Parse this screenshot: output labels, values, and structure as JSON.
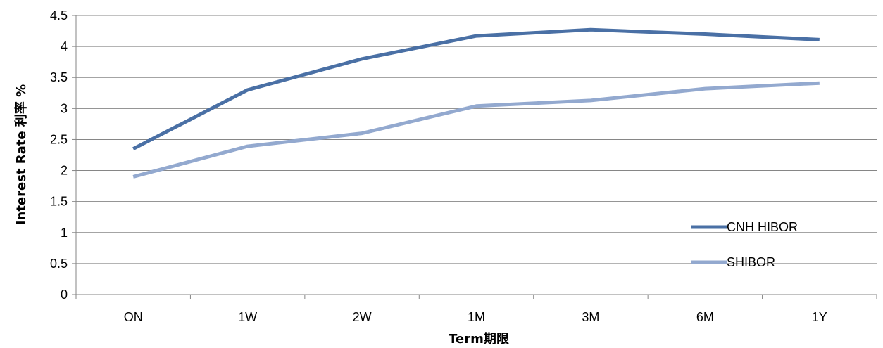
{
  "chart_data": {
    "type": "line",
    "title": "",
    "xlabel": "Term期限",
    "ylabel": "Interest Rate 利率 %",
    "categories": [
      "ON",
      "1W",
      "2W",
      "1M",
      "3M",
      "6M",
      "1Y"
    ],
    "ylim": [
      0,
      4.5
    ],
    "yticks": [
      "0",
      "0.5",
      "1",
      "1.5",
      "2",
      "2.5",
      "3",
      "3.5",
      "4",
      "4.5"
    ],
    "grid": true,
    "legend_position": "bottom-right",
    "series": [
      {
        "name": "CNH HIBOR",
        "color": "#4A70A5",
        "values": [
          2.35,
          3.3,
          3.8,
          4.17,
          4.27,
          4.2,
          4.11
        ]
      },
      {
        "name": "SHIBOR",
        "color": "#93A9CF",
        "values": [
          1.9,
          2.39,
          2.6,
          3.04,
          3.13,
          3.32,
          3.41
        ]
      }
    ]
  }
}
